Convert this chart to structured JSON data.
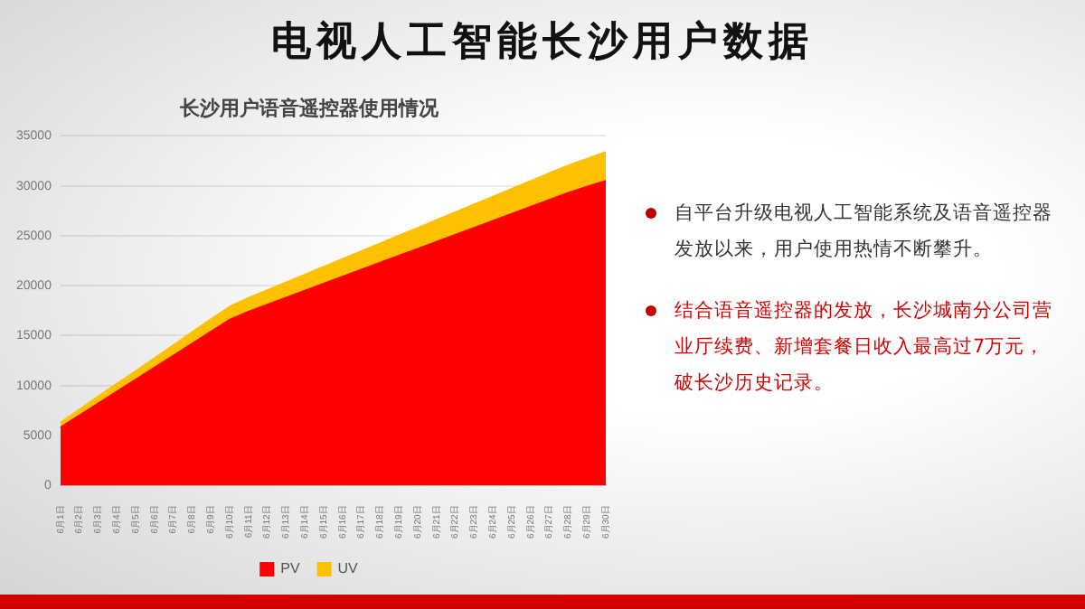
{
  "chart_data": {
    "type": "area",
    "title": "电视人工智能长沙用户数据",
    "subtitle": "长沙用户语音遥控器使用情况",
    "categories": [
      "6月1日",
      "6月2日",
      "6月3日",
      "6月4日",
      "6月5日",
      "6月6日",
      "6月7日",
      "6月8日",
      "6月9日",
      "6月10日",
      "6月11日",
      "6月12日",
      "6月13日",
      "6月14日",
      "6月15日",
      "6月16日",
      "6月17日",
      "6月18日",
      "6月19日",
      "6月20日",
      "6月21日",
      "6月22日",
      "6月23日",
      "6月24日",
      "6月25日",
      "6月26日",
      "6月27日",
      "6月28日",
      "6月29日",
      "6月30日"
    ],
    "stacked": true,
    "series": [
      {
        "name": "PV",
        "color": "#ff0000",
        "values": [
          5800,
          7000,
          8200,
          9400,
          10600,
          11800,
          13000,
          14200,
          15400,
          16600,
          17400,
          18100,
          18800,
          19500,
          20200,
          20900,
          21600,
          22300,
          23000,
          23700,
          24400,
          25100,
          25800,
          26500,
          27200,
          27900,
          28600,
          29300,
          29900,
          30500
        ]
      },
      {
        "name": "UV",
        "color": "#ffc000",
        "values": [
          500,
          600,
          700,
          800,
          850,
          950,
          1050,
          1150,
          1250,
          1300,
          1380,
          1460,
          1540,
          1620,
          1700,
          1780,
          1860,
          1940,
          2020,
          2100,
          2180,
          2260,
          2340,
          2420,
          2500,
          2580,
          2660,
          2740,
          2820,
          2900
        ]
      }
    ],
    "ylim": [
      0,
      35000
    ],
    "yticks": [
      0,
      5000,
      10000,
      15000,
      20000,
      25000,
      30000,
      35000
    ],
    "grid": "y",
    "legend": "bottom",
    "annotations": [
      "自平台升级电视人工智能系统及语音遥控器发放以来，用户使用热情不断攀升。",
      "结合语音遥控器的发放，长沙城南分公司营业厅续费、新增套餐日收入最高过7万元，破长沙历史记录。"
    ]
  }
}
